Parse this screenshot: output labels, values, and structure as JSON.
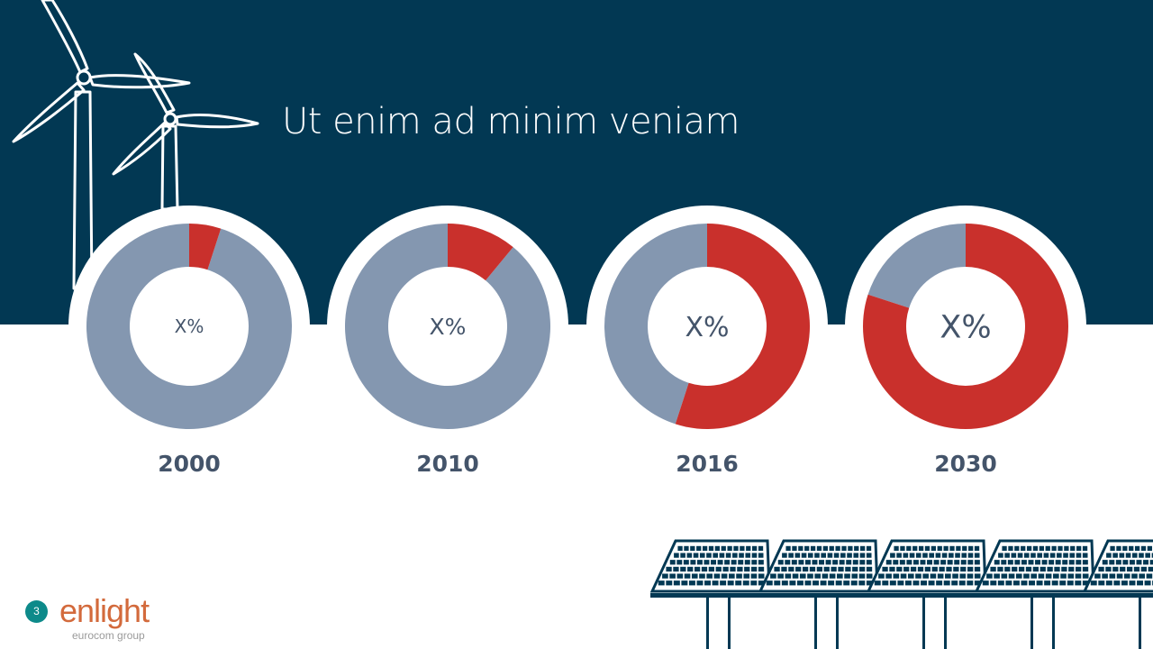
{
  "slide": {
    "title": "Ut enim ad minim veniam",
    "page_number": "3"
  },
  "logo": {
    "name": "enlight",
    "tagline": "eurocom group"
  },
  "colors": {
    "header_band": "#023853",
    "share_color": "#c9302c",
    "remainder_color": "#8497b0",
    "label_color": "#44546a",
    "page_badge": "#0d8a8a"
  },
  "icons": [
    "wind-turbine-icon",
    "solar-panel-icon"
  ],
  "chart_data": [
    {
      "type": "pie",
      "year": "2000",
      "center_label": "X%",
      "values": [
        5,
        95
      ]
    },
    {
      "type": "pie",
      "year": "2010",
      "center_label": "X%",
      "values": [
        11,
        89
      ]
    },
    {
      "type": "pie",
      "year": "2016",
      "center_label": "X%",
      "values": [
        55,
        45
      ]
    },
    {
      "type": "pie",
      "year": "2030",
      "center_label": "X%",
      "values": [
        80,
        20
      ]
    }
  ]
}
